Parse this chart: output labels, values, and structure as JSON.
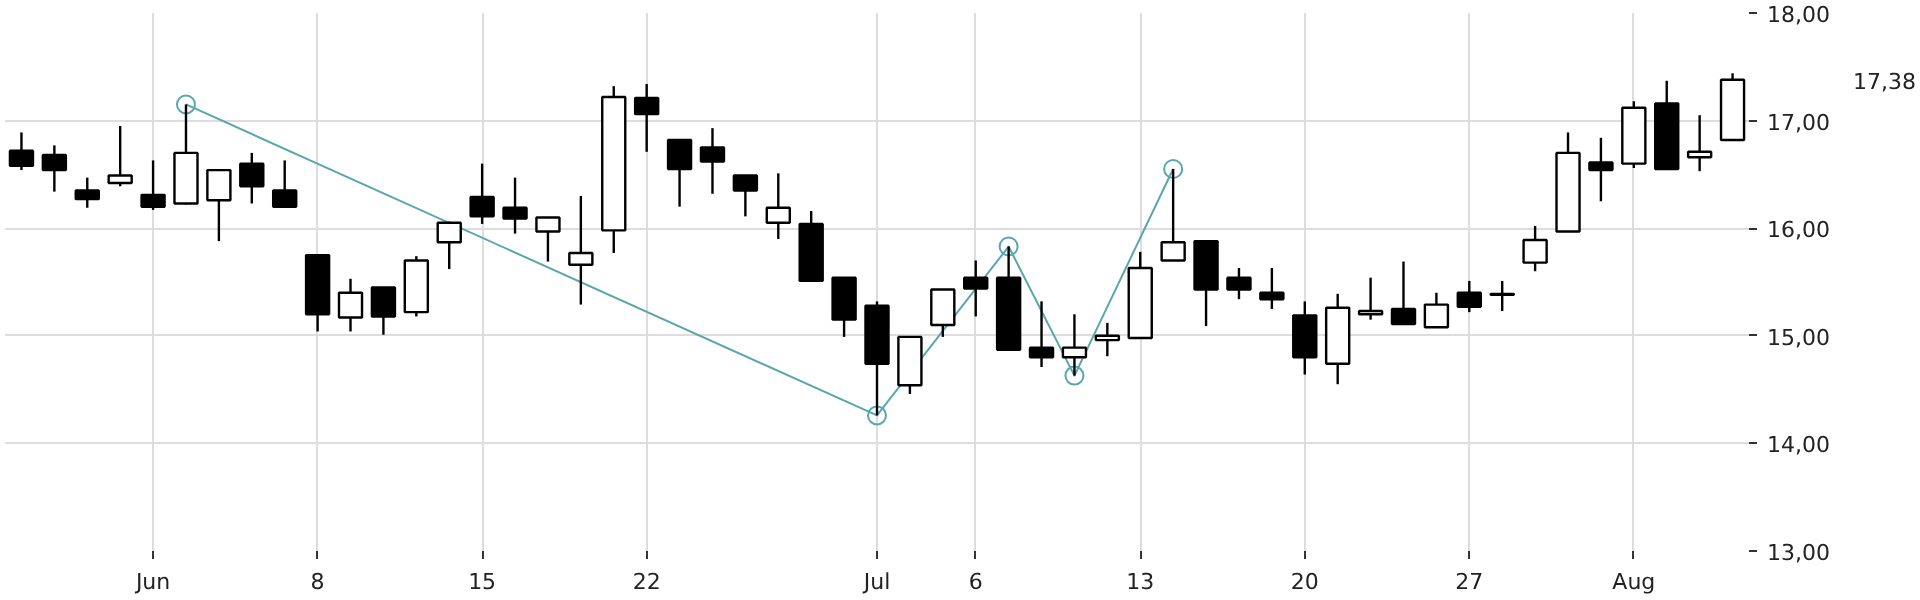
{
  "chart_data": {
    "type": "candlestick",
    "categories": [
      null,
      null,
      null,
      null,
      "Jun",
      null,
      null,
      null,
      null,
      "8",
      null,
      null,
      null,
      null,
      "15",
      null,
      null,
      null,
      null,
      "22",
      null,
      null,
      null,
      null,
      null,
      null,
      "Jul",
      null,
      null,
      "6",
      null,
      null,
      null,
      null,
      "13",
      null,
      null,
      null,
      null,
      "20",
      null,
      null,
      null,
      null,
      "27",
      null,
      null,
      null,
      null,
      "Aug",
      null,
      null,
      null
    ],
    "ohlc": [
      [
        16.72,
        16.89,
        16.54,
        16.58
      ],
      [
        16.68,
        16.77,
        16.34,
        16.54
      ],
      [
        16.35,
        16.47,
        16.19,
        16.27
      ],
      [
        16.42,
        16.95,
        16.39,
        16.49
      ],
      [
        16.31,
        16.63,
        16.17,
        16.2
      ],
      [
        16.23,
        17.15,
        16.22,
        16.7
      ],
      [
        16.26,
        16.54,
        15.88,
        16.54
      ],
      [
        16.6,
        16.7,
        16.23,
        16.39
      ],
      [
        16.35,
        16.63,
        16.2,
        16.2
      ],
      [
        15.75,
        15.75,
        15.04,
        15.2
      ],
      [
        15.17,
        15.53,
        15.04,
        15.4
      ],
      [
        15.45,
        15.45,
        15.01,
        15.18
      ],
      [
        15.22,
        15.74,
        15.18,
        15.7
      ],
      [
        15.87,
        16.06,
        15.62,
        16.05
      ],
      [
        16.29,
        16.6,
        16.04,
        16.11
      ],
      [
        16.19,
        16.47,
        15.95,
        16.09
      ],
      [
        15.97,
        16.1,
        15.69,
        16.1
      ],
      [
        15.66,
        16.3,
        15.29,
        15.77
      ],
      [
        15.98,
        17.32,
        15.77,
        17.22
      ],
      [
        17.21,
        17.34,
        16.71,
        17.06
      ],
      [
        16.82,
        16.82,
        16.2,
        16.55
      ],
      [
        16.75,
        16.93,
        16.32,
        16.62
      ],
      [
        16.49,
        16.49,
        16.11,
        16.35
      ],
      [
        16.05,
        16.51,
        15.9,
        16.19
      ],
      [
        16.04,
        16.16,
        15.51,
        15.51
      ],
      [
        15.54,
        15.54,
        14.99,
        15.15
      ],
      [
        15.28,
        15.32,
        14.26,
        14.74
      ],
      [
        14.54,
        14.99,
        14.46,
        14.99
      ],
      [
        15.1,
        15.43,
        14.99,
        15.43
      ],
      [
        15.54,
        15.7,
        15.18,
        15.44
      ],
      [
        15.54,
        15.83,
        14.87,
        14.87
      ],
      [
        14.89,
        15.32,
        14.71,
        14.8
      ],
      [
        14.8,
        15.2,
        14.63,
        14.89
      ],
      [
        14.96,
        15.12,
        14.81,
        15.0
      ],
      [
        14.98,
        15.78,
        14.98,
        15.63
      ],
      [
        15.7,
        16.55,
        15.7,
        15.87
      ],
      [
        15.88,
        15.88,
        15.09,
        15.43
      ],
      [
        15.54,
        15.63,
        15.34,
        15.43
      ],
      [
        15.4,
        15.63,
        15.25,
        15.34
      ],
      [
        15.19,
        15.32,
        14.64,
        14.8
      ],
      [
        14.74,
        15.39,
        14.55,
        15.26
      ],
      [
        15.2,
        15.54,
        15.15,
        15.23
      ],
      [
        15.25,
        15.69,
        15.11,
        15.11
      ],
      [
        15.08,
        15.4,
        15.08,
        15.29
      ],
      [
        15.4,
        15.51,
        15.22,
        15.27
      ],
      [
        15.38,
        15.51,
        15.23,
        15.39
      ],
      [
        15.68,
        16.02,
        15.6,
        15.89
      ],
      [
        15.97,
        16.89,
        15.97,
        16.7
      ],
      [
        16.61,
        16.84,
        16.25,
        16.54
      ],
      [
        16.6,
        17.18,
        16.56,
        17.12
      ],
      [
        17.16,
        17.37,
        16.55,
        16.55
      ],
      [
        16.66,
        17.05,
        16.53,
        16.71
      ],
      [
        16.82,
        17.44,
        16.82,
        17.38
      ]
    ],
    "series": [
      {
        "type": "line",
        "color": "#5aa6ad",
        "marker": "circle",
        "values": [
          null,
          null,
          null,
          null,
          null,
          17.15,
          null,
          null,
          null,
          null,
          null,
          null,
          null,
          null,
          null,
          null,
          null,
          null,
          null,
          null,
          null,
          null,
          null,
          null,
          null,
          null,
          14.26,
          null,
          null,
          null,
          15.83,
          null,
          14.63,
          null,
          null,
          16.55,
          null,
          null,
          null,
          null,
          null,
          null,
          null,
          null,
          null,
          null,
          null,
          null,
          null,
          null,
          null,
          null,
          null
        ]
      }
    ],
    "ylim": [
      13,
      18
    ],
    "yticks": [
      {
        "value": 13,
        "label": "13,00"
      },
      {
        "value": 14,
        "label": "14,00"
      },
      {
        "value": 15,
        "label": "15,00"
      },
      {
        "value": 16,
        "label": "16,00"
      },
      {
        "value": 17,
        "label": "17,00"
      },
      {
        "value": 18,
        "label": "18,00"
      }
    ],
    "annotations": [
      "17,38"
    ],
    "grid": true
  }
}
